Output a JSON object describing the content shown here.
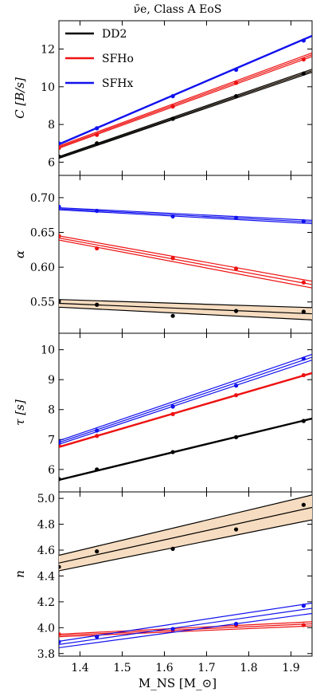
{
  "title": "ν̄e, Class A EoS",
  "xlabel": "M_NS [M_⊙]",
  "colors": {
    "DD2": "#000000",
    "SFHo": "#ee1111",
    "SFHx": "#1111ee",
    "band": "#f6dcc0"
  },
  "chart_data": [
    {
      "type": "line",
      "ylabel": "C [B/s]",
      "xlim": [
        1.35,
        1.95
      ],
      "ylim": [
        5.3,
        13.5
      ],
      "yticks": [
        6,
        8,
        10,
        12
      ],
      "legend": {
        "placement": "top-left",
        "entries": [
          "DD2",
          "SFHo",
          "SFHx"
        ]
      },
      "series": [
        {
          "name": "DD2",
          "points_x": [
            1.35,
            1.44,
            1.62,
            1.77,
            1.93
          ],
          "points_y": [
            6.3,
            7.0,
            8.3,
            9.5,
            10.7
          ],
          "fit": [
            [
              1.35,
              6.25
            ],
            [
              1.95,
              10.85
            ]
          ],
          "band": 0.05
        },
        {
          "name": "SFHo",
          "points_x": [
            1.35,
            1.44,
            1.62,
            1.77,
            1.93
          ],
          "points_y": [
            6.75,
            7.45,
            8.95,
            10.2,
            11.45
          ],
          "fit": [
            [
              1.35,
              6.8
            ],
            [
              1.95,
              11.7
            ]
          ],
          "band": 0.06
        },
        {
          "name": "SFHx",
          "points_x": [
            1.35,
            1.44,
            1.62,
            1.77,
            1.93
          ],
          "points_y": [
            7.0,
            7.8,
            9.5,
            10.9,
            12.45
          ],
          "fit": [
            [
              1.35,
              6.95
            ],
            [
              1.95,
              12.7
            ]
          ],
          "band": 0.0
        }
      ]
    },
    {
      "type": "line",
      "ylabel": "α",
      "xlim": [
        1.35,
        1.95
      ],
      "ylim": [
        0.505,
        0.732
      ],
      "yticks": [
        0.55,
        0.6,
        0.65,
        0.7
      ],
      "ytick_labels": [
        "0.55",
        "0.60",
        "0.65",
        "0.70"
      ],
      "series": [
        {
          "name": "DD2",
          "points_x": [
            1.35,
            1.44,
            1.62,
            1.77,
            1.93
          ],
          "points_y": [
            0.551,
            0.546,
            0.53,
            0.537,
            0.536
          ],
          "fit": [
            [
              1.35,
              0.548
            ],
            [
              1.95,
              0.533
            ]
          ],
          "band": 0.0055
        },
        {
          "name": "SFHo",
          "points_x": [
            1.35,
            1.44,
            1.62,
            1.77,
            1.93
          ],
          "points_y": [
            0.645,
            0.627,
            0.613,
            0.598,
            0.578
          ],
          "fit": [
            [
              1.35,
              0.642
            ],
            [
              1.95,
              0.575
            ]
          ],
          "band": 0.003
        },
        {
          "name": "SFHx",
          "points_x": [
            1.35,
            1.44,
            1.62,
            1.77,
            1.93
          ],
          "points_y": [
            0.687,
            0.681,
            0.673,
            0.671,
            0.666
          ],
          "fit": [
            [
              1.35,
              0.684
            ],
            [
              1.95,
              0.665
            ]
          ],
          "band": 0.0015
        }
      ]
    },
    {
      "type": "line",
      "ylabel": "τ [s]",
      "xlim": [
        1.35,
        1.95
      ],
      "ylim": [
        5.25,
        10.55
      ],
      "yticks": [
        6,
        7,
        8,
        9,
        10
      ],
      "series": [
        {
          "name": "DD2",
          "points_x": [
            1.35,
            1.44,
            1.62,
            1.77,
            1.93
          ],
          "points_y": [
            5.68,
            6.0,
            6.58,
            7.08,
            7.62
          ],
          "fit": [
            [
              1.35,
              5.65
            ],
            [
              1.95,
              7.7
            ]
          ],
          "band": 0.0
        },
        {
          "name": "SFHo",
          "points_x": [
            1.35,
            1.44,
            1.62,
            1.77,
            1.93
          ],
          "points_y": [
            6.8,
            7.12,
            7.85,
            8.48,
            9.15
          ],
          "fit": [
            [
              1.35,
              6.75
            ],
            [
              1.95,
              9.22
            ]
          ],
          "band": 0.0
        },
        {
          "name": "SFHx",
          "points_x": [
            1.35,
            1.44,
            1.62,
            1.77,
            1.93
          ],
          "points_y": [
            6.92,
            7.3,
            8.1,
            8.8,
            9.7
          ],
          "fit": [
            [
              1.35,
              6.9
            ],
            [
              1.95,
              9.75
            ]
          ],
          "band": 0.06
        }
      ]
    },
    {
      "type": "line",
      "ylabel": "n",
      "xlabel": "M_NS [M_⊙]",
      "xlim": [
        1.35,
        1.95
      ],
      "ylim": [
        3.78,
        5.05
      ],
      "yticks": [
        3.8,
        4.0,
        4.2,
        4.4,
        4.6,
        4.8,
        5.0
      ],
      "ytick_labels": [
        "3.8",
        "4.0",
        "4.2",
        "4.4",
        "4.6",
        "4.8",
        "5.0"
      ],
      "xticks": [
        1.4,
        1.5,
        1.6,
        1.7,
        1.8,
        1.9
      ],
      "series": [
        {
          "name": "DD2",
          "points_x": [
            1.35,
            1.44,
            1.62,
            1.77,
            1.93
          ],
          "points_y": [
            4.47,
            4.59,
            4.61,
            4.76,
            4.95
          ],
          "fit": [
            [
              1.35,
              4.5
            ],
            [
              1.95,
              4.93
            ]
          ],
          "band": 0.06
        },
        {
          "name": "SFHo",
          "points_x": [
            1.35,
            1.44,
            1.62,
            1.77,
            1.93
          ],
          "points_y": [
            3.95,
            3.93,
            3.98,
            4.02,
            4.02
          ],
          "fit": [
            [
              1.35,
              3.94
            ],
            [
              1.95,
              4.03
            ]
          ],
          "band": 0.01
        },
        {
          "name": "SFHx",
          "points_x": [
            1.35,
            1.44,
            1.62,
            1.77,
            1.93
          ],
          "points_y": [
            3.89,
            3.93,
            3.99,
            4.03,
            4.17
          ],
          "fit": [
            [
              1.35,
              3.87
            ],
            [
              1.95,
              4.15
            ]
          ],
          "band": 0.025
        }
      ]
    }
  ]
}
